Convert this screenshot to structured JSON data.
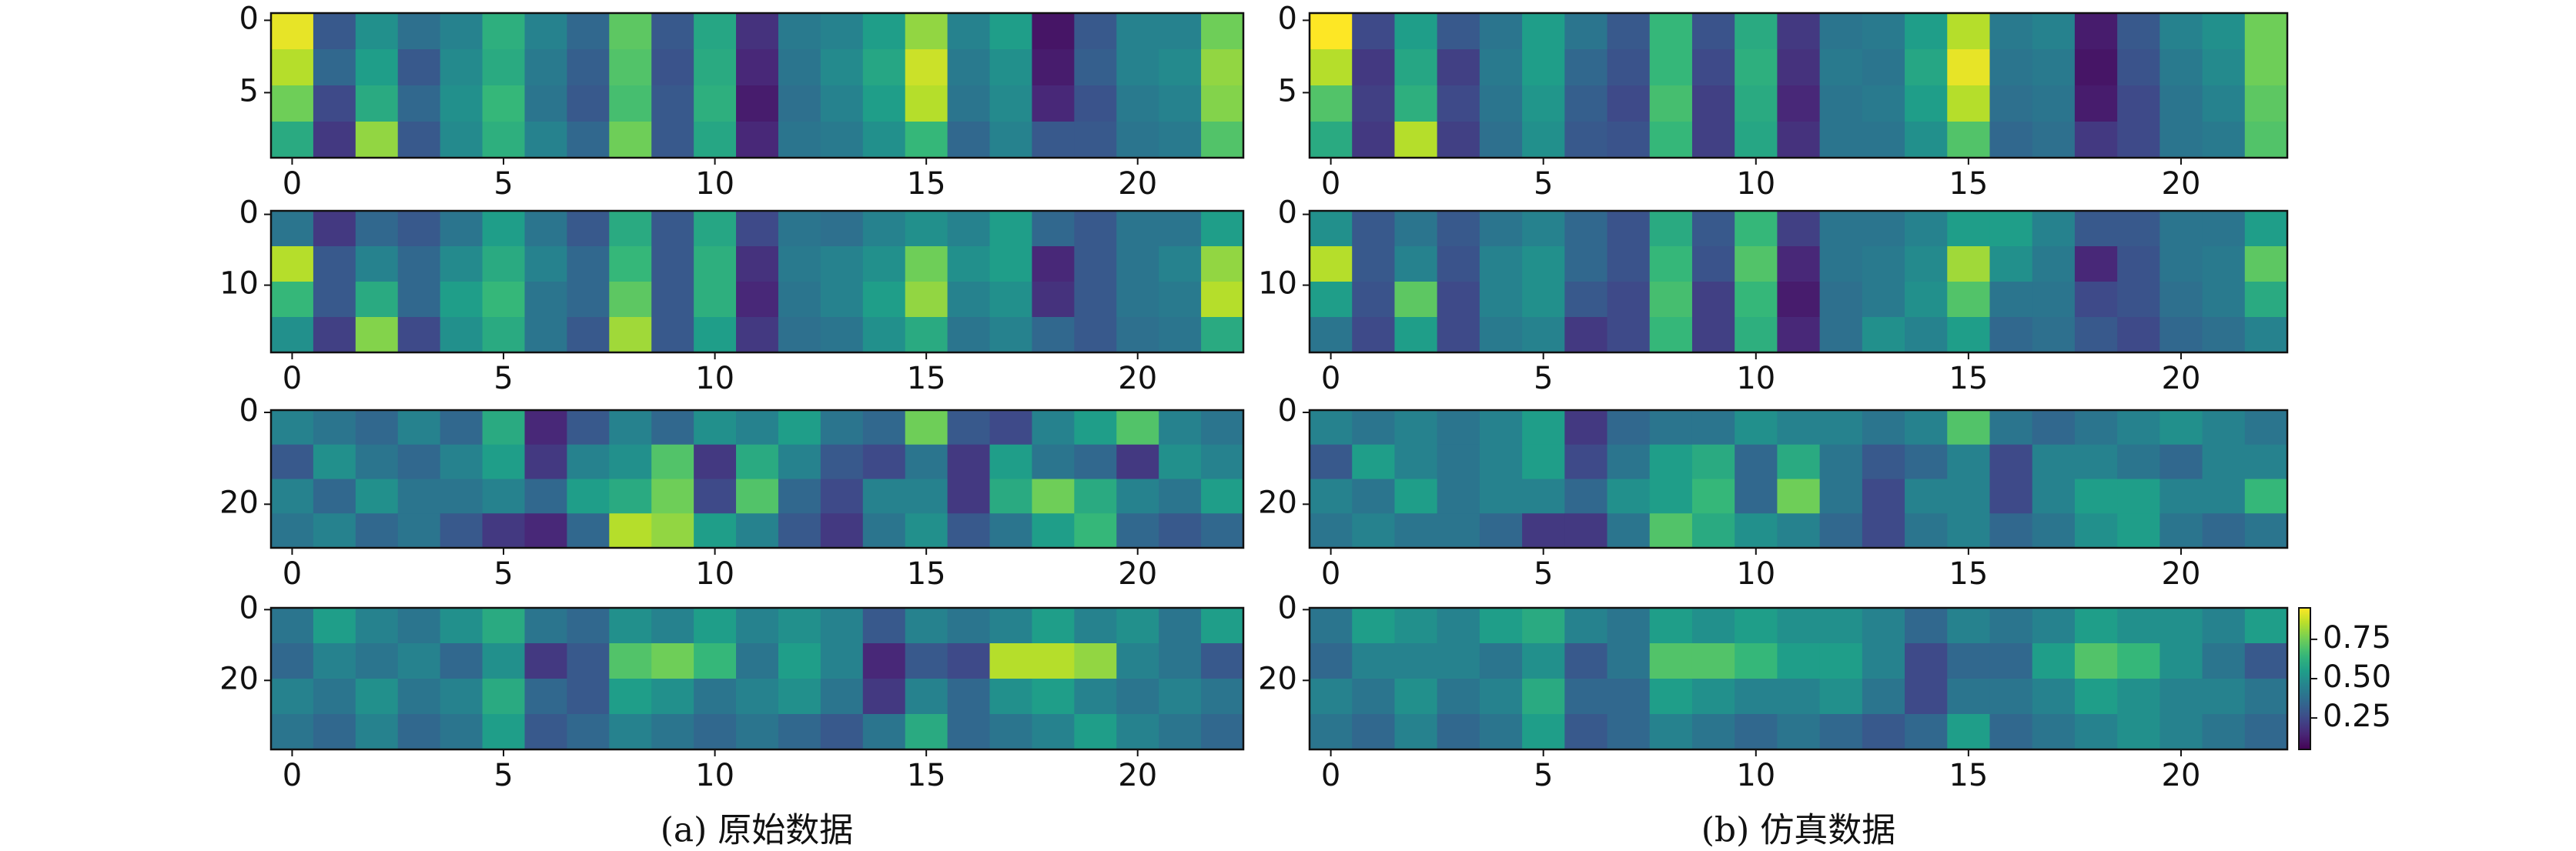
{
  "captions": [
    "(a) 原始数据",
    "(b) 仿真数据"
  ],
  "chart_data": [
    {
      "type": "heatmap",
      "xlim": [
        -0.5,
        22.5
      ],
      "xticks": [
        0,
        5,
        10,
        15,
        20
      ],
      "ylim": [
        9.5,
        -0.5
      ],
      "yticks": [
        0,
        5
      ],
      "clim": [
        0.05,
        0.95
      ],
      "z": [
        [
          0.92,
          0.3,
          0.5,
          0.38,
          0.45,
          0.62,
          0.45,
          0.35,
          0.72,
          0.3,
          0.58,
          0.18,
          0.42,
          0.45,
          0.55,
          0.8,
          0.45,
          0.55,
          0.1,
          0.3,
          0.45,
          0.45,
          0.75
        ],
        [
          0.85,
          0.35,
          0.55,
          0.3,
          0.48,
          0.6,
          0.42,
          0.32,
          0.7,
          0.28,
          0.6,
          0.15,
          0.4,
          0.48,
          0.58,
          0.88,
          0.42,
          0.5,
          0.12,
          0.32,
          0.45,
          0.48,
          0.8
        ],
        [
          0.75,
          0.25,
          0.6,
          0.35,
          0.5,
          0.65,
          0.4,
          0.3,
          0.68,
          0.3,
          0.62,
          0.12,
          0.38,
          0.45,
          0.55,
          0.85,
          0.4,
          0.48,
          0.15,
          0.28,
          0.42,
          0.45,
          0.78
        ],
        [
          0.6,
          0.2,
          0.8,
          0.3,
          0.48,
          0.62,
          0.45,
          0.35,
          0.75,
          0.3,
          0.58,
          0.15,
          0.4,
          0.42,
          0.5,
          0.65,
          0.35,
          0.45,
          0.3,
          0.3,
          0.4,
          0.42,
          0.7
        ]
      ]
    },
    {
      "type": "heatmap",
      "xlim": [
        -0.5,
        22.5
      ],
      "xticks": [
        0,
        5,
        10,
        15,
        20
      ],
      "ylim": [
        9.5,
        -0.5
      ],
      "yticks": [
        0,
        5
      ],
      "clim": [
        0.05,
        0.95
      ],
      "z": [
        [
          0.95,
          0.25,
          0.55,
          0.3,
          0.4,
          0.55,
          0.4,
          0.3,
          0.65,
          0.28,
          0.6,
          0.2,
          0.4,
          0.42,
          0.55,
          0.85,
          0.42,
          0.45,
          0.12,
          0.3,
          0.45,
          0.5,
          0.75
        ],
        [
          0.85,
          0.2,
          0.58,
          0.22,
          0.42,
          0.55,
          0.35,
          0.28,
          0.65,
          0.25,
          0.62,
          0.18,
          0.42,
          0.4,
          0.58,
          0.92,
          0.4,
          0.42,
          0.1,
          0.28,
          0.42,
          0.48,
          0.75
        ],
        [
          0.7,
          0.22,
          0.62,
          0.25,
          0.4,
          0.52,
          0.32,
          0.25,
          0.68,
          0.22,
          0.6,
          0.15,
          0.4,
          0.42,
          0.55,
          0.85,
          0.38,
          0.4,
          0.12,
          0.25,
          0.4,
          0.45,
          0.72
        ],
        [
          0.6,
          0.2,
          0.85,
          0.22,
          0.38,
          0.5,
          0.3,
          0.28,
          0.65,
          0.22,
          0.58,
          0.18,
          0.4,
          0.4,
          0.5,
          0.7,
          0.35,
          0.38,
          0.2,
          0.25,
          0.4,
          0.42,
          0.7
        ]
      ]
    },
    {
      "type": "heatmap",
      "xlim": [
        -0.5,
        22.5
      ],
      "xticks": [
        0,
        5,
        10,
        15,
        20
      ],
      "ylim": [
        19.5,
        -0.5
      ],
      "yticks": [
        0,
        10
      ],
      "clim": [
        0.05,
        0.95
      ],
      "z": [
        [
          0.4,
          0.2,
          0.35,
          0.3,
          0.4,
          0.55,
          0.4,
          0.3,
          0.6,
          0.3,
          0.58,
          0.25,
          0.4,
          0.38,
          0.45,
          0.5,
          0.45,
          0.55,
          0.35,
          0.3,
          0.4,
          0.4,
          0.55
        ],
        [
          0.85,
          0.3,
          0.45,
          0.35,
          0.48,
          0.6,
          0.45,
          0.35,
          0.65,
          0.3,
          0.62,
          0.18,
          0.42,
          0.45,
          0.5,
          0.75,
          0.5,
          0.55,
          0.15,
          0.3,
          0.4,
          0.45,
          0.8
        ],
        [
          0.65,
          0.3,
          0.6,
          0.35,
          0.55,
          0.65,
          0.4,
          0.35,
          0.72,
          0.3,
          0.62,
          0.15,
          0.4,
          0.45,
          0.55,
          0.8,
          0.45,
          0.5,
          0.18,
          0.3,
          0.4,
          0.42,
          0.85
        ],
        [
          0.5,
          0.22,
          0.78,
          0.25,
          0.5,
          0.6,
          0.4,
          0.3,
          0.82,
          0.3,
          0.55,
          0.2,
          0.38,
          0.4,
          0.5,
          0.6,
          0.4,
          0.45,
          0.35,
          0.3,
          0.38,
          0.4,
          0.6
        ]
      ]
    },
    {
      "type": "heatmap",
      "xlim": [
        -0.5,
        22.5
      ],
      "xticks": [
        0,
        5,
        10,
        15,
        20
      ],
      "ylim": [
        19.5,
        -0.5
      ],
      "yticks": [
        0,
        10
      ],
      "clim": [
        0.05,
        0.95
      ],
      "z": [
        [
          0.5,
          0.3,
          0.4,
          0.3,
          0.4,
          0.45,
          0.35,
          0.28,
          0.6,
          0.3,
          0.65,
          0.22,
          0.4,
          0.4,
          0.45,
          0.55,
          0.55,
          0.45,
          0.3,
          0.3,
          0.4,
          0.4,
          0.55
        ],
        [
          0.85,
          0.3,
          0.45,
          0.28,
          0.45,
          0.5,
          0.35,
          0.28,
          0.65,
          0.28,
          0.7,
          0.15,
          0.4,
          0.42,
          0.48,
          0.82,
          0.5,
          0.42,
          0.15,
          0.28,
          0.4,
          0.42,
          0.72
        ],
        [
          0.55,
          0.28,
          0.72,
          0.25,
          0.45,
          0.5,
          0.3,
          0.25,
          0.68,
          0.22,
          0.65,
          0.12,
          0.38,
          0.42,
          0.5,
          0.7,
          0.4,
          0.4,
          0.25,
          0.28,
          0.38,
          0.42,
          0.6
        ],
        [
          0.4,
          0.25,
          0.55,
          0.25,
          0.42,
          0.45,
          0.2,
          0.25,
          0.65,
          0.22,
          0.62,
          0.15,
          0.38,
          0.5,
          0.45,
          0.55,
          0.35,
          0.38,
          0.3,
          0.25,
          0.35,
          0.38,
          0.45
        ]
      ]
    },
    {
      "type": "heatmap",
      "xlim": [
        -0.5,
        22.5
      ],
      "xticks": [
        0,
        5,
        10,
        15,
        20
      ],
      "ylim": [
        29.5,
        -0.5
      ],
      "yticks": [
        0,
        20
      ],
      "clim": [
        0.05,
        0.95
      ],
      "z": [
        [
          0.45,
          0.4,
          0.35,
          0.45,
          0.35,
          0.6,
          0.15,
          0.3,
          0.45,
          0.35,
          0.5,
          0.45,
          0.55,
          0.4,
          0.35,
          0.75,
          0.3,
          0.25,
          0.45,
          0.55,
          0.7,
          0.45,
          0.4
        ],
        [
          0.3,
          0.5,
          0.4,
          0.35,
          0.45,
          0.55,
          0.2,
          0.45,
          0.5,
          0.7,
          0.2,
          0.6,
          0.45,
          0.3,
          0.25,
          0.4,
          0.2,
          0.55,
          0.4,
          0.35,
          0.2,
          0.5,
          0.45
        ],
        [
          0.45,
          0.35,
          0.5,
          0.4,
          0.4,
          0.45,
          0.35,
          0.55,
          0.6,
          0.75,
          0.25,
          0.7,
          0.35,
          0.25,
          0.45,
          0.45,
          0.2,
          0.6,
          0.75,
          0.6,
          0.45,
          0.4,
          0.55
        ],
        [
          0.4,
          0.45,
          0.35,
          0.4,
          0.3,
          0.2,
          0.15,
          0.35,
          0.85,
          0.8,
          0.55,
          0.45,
          0.3,
          0.2,
          0.4,
          0.5,
          0.3,
          0.4,
          0.55,
          0.65,
          0.35,
          0.3,
          0.35
        ]
      ]
    },
    {
      "type": "heatmap",
      "xlim": [
        -0.5,
        22.5
      ],
      "xticks": [
        0,
        5,
        10,
        15,
        20
      ],
      "ylim": [
        29.5,
        -0.5
      ],
      "yticks": [
        0,
        20
      ],
      "clim": [
        0.05,
        0.95
      ],
      "z": [
        [
          0.45,
          0.4,
          0.45,
          0.4,
          0.45,
          0.55,
          0.2,
          0.35,
          0.4,
          0.4,
          0.5,
          0.45,
          0.45,
          0.4,
          0.45,
          0.7,
          0.4,
          0.35,
          0.4,
          0.45,
          0.5,
          0.45,
          0.4
        ],
        [
          0.3,
          0.55,
          0.45,
          0.4,
          0.45,
          0.55,
          0.25,
          0.4,
          0.55,
          0.6,
          0.35,
          0.6,
          0.4,
          0.3,
          0.35,
          0.45,
          0.25,
          0.45,
          0.45,
          0.4,
          0.35,
          0.45,
          0.45
        ],
        [
          0.45,
          0.4,
          0.55,
          0.4,
          0.45,
          0.45,
          0.35,
          0.5,
          0.55,
          0.65,
          0.35,
          0.75,
          0.4,
          0.25,
          0.45,
          0.45,
          0.25,
          0.45,
          0.55,
          0.55,
          0.45,
          0.45,
          0.65
        ],
        [
          0.4,
          0.45,
          0.4,
          0.4,
          0.35,
          0.2,
          0.2,
          0.4,
          0.7,
          0.6,
          0.5,
          0.45,
          0.35,
          0.25,
          0.4,
          0.45,
          0.35,
          0.4,
          0.5,
          0.55,
          0.4,
          0.35,
          0.4
        ]
      ]
    },
    {
      "type": "heatmap",
      "xlim": [
        -0.5,
        22.5
      ],
      "xticks": [
        0,
        5,
        10,
        15,
        20
      ],
      "ylim": [
        39.5,
        -0.5
      ],
      "yticks": [
        0,
        20
      ],
      "clim": [
        0.05,
        0.95
      ],
      "z": [
        [
          0.4,
          0.55,
          0.45,
          0.4,
          0.5,
          0.6,
          0.4,
          0.35,
          0.5,
          0.45,
          0.55,
          0.45,
          0.5,
          0.45,
          0.3,
          0.45,
          0.4,
          0.45,
          0.55,
          0.45,
          0.5,
          0.4,
          0.55
        ],
        [
          0.35,
          0.45,
          0.4,
          0.45,
          0.35,
          0.5,
          0.2,
          0.3,
          0.7,
          0.75,
          0.65,
          0.4,
          0.55,
          0.45,
          0.15,
          0.3,
          0.25,
          0.85,
          0.85,
          0.8,
          0.45,
          0.4,
          0.3
        ],
        [
          0.45,
          0.4,
          0.5,
          0.4,
          0.45,
          0.6,
          0.35,
          0.3,
          0.55,
          0.5,
          0.4,
          0.45,
          0.5,
          0.4,
          0.2,
          0.45,
          0.35,
          0.5,
          0.55,
          0.45,
          0.4,
          0.45,
          0.4
        ],
        [
          0.4,
          0.35,
          0.45,
          0.35,
          0.4,
          0.55,
          0.3,
          0.35,
          0.45,
          0.4,
          0.35,
          0.4,
          0.35,
          0.3,
          0.4,
          0.6,
          0.35,
          0.4,
          0.45,
          0.55,
          0.45,
          0.4,
          0.35
        ]
      ]
    },
    {
      "type": "heatmap",
      "xlim": [
        -0.5,
        22.5
      ],
      "xticks": [
        0,
        5,
        10,
        15,
        20
      ],
      "ylim": [
        39.5,
        -0.5
      ],
      "yticks": [
        0,
        20
      ],
      "clim": [
        0.05,
        0.95
      ],
      "colorbar": {
        "ticks": [
          0.25,
          {
            "value": 0.5,
            "label": "0.50"
          },
          0.75
        ]
      },
      "z": [
        [
          0.4,
          0.55,
          0.5,
          0.45,
          0.55,
          0.6,
          0.45,
          0.4,
          0.55,
          0.5,
          0.55,
          0.5,
          0.5,
          0.45,
          0.35,
          0.45,
          0.4,
          0.45,
          0.55,
          0.5,
          0.5,
          0.45,
          0.55
        ],
        [
          0.35,
          0.45,
          0.45,
          0.45,
          0.4,
          0.5,
          0.3,
          0.4,
          0.7,
          0.7,
          0.65,
          0.55,
          0.55,
          0.45,
          0.25,
          0.35,
          0.35,
          0.55,
          0.7,
          0.65,
          0.5,
          0.4,
          0.3
        ],
        [
          0.45,
          0.4,
          0.5,
          0.4,
          0.45,
          0.6,
          0.35,
          0.35,
          0.55,
          0.5,
          0.45,
          0.45,
          0.5,
          0.4,
          0.25,
          0.4,
          0.4,
          0.45,
          0.55,
          0.5,
          0.45,
          0.45,
          0.4
        ],
        [
          0.4,
          0.35,
          0.45,
          0.35,
          0.4,
          0.55,
          0.3,
          0.35,
          0.45,
          0.4,
          0.35,
          0.4,
          0.35,
          0.3,
          0.35,
          0.55,
          0.35,
          0.4,
          0.45,
          0.5,
          0.45,
          0.4,
          0.35
        ]
      ]
    }
  ]
}
